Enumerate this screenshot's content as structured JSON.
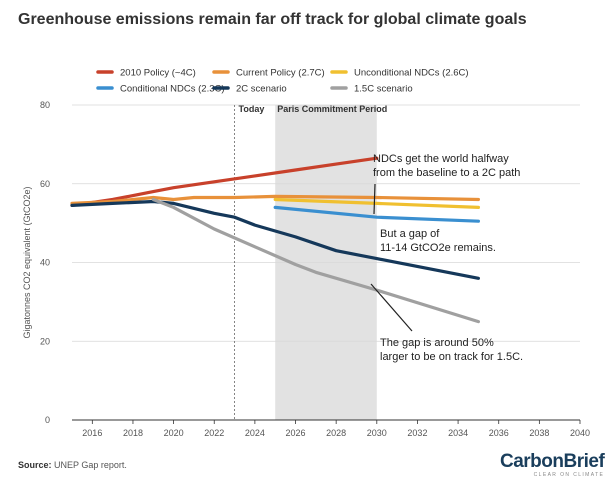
{
  "title": "Greenhouse emissions remain far off track for global climate goals",
  "source_label": "Source:",
  "source_text": "UNEP Gap report.",
  "logo": {
    "part1": "Carbon",
    "part2": "Brief",
    "tagline": "CLEAR ON CLIMATE"
  },
  "chart_data": {
    "type": "line",
    "title": "Greenhouse emissions remain far off track for global climate goals",
    "xlabel": "",
    "ylabel": "Gigatonnes CO2 equivalent (GtCO2e)",
    "xlim": [
      2015,
      2040
    ],
    "ylim": [
      0,
      80
    ],
    "x_ticks": [
      2016,
      2018,
      2020,
      2022,
      2024,
      2026,
      2028,
      2030,
      2032,
      2034,
      2036,
      2038,
      2040
    ],
    "y_ticks": [
      0,
      20,
      40,
      60,
      80
    ],
    "grid": "horizontal",
    "legend_position": "top",
    "today": {
      "x": 2023,
      "label": "Today"
    },
    "band": {
      "x0": 2025,
      "x1": 2030,
      "label": "Paris Commitment Period"
    },
    "series": [
      {
        "name": "2010 Policy (~4C)",
        "color": "#c8412b",
        "x": [
          2015,
          2017,
          2019,
          2020,
          2022,
          2024,
          2026,
          2028,
          2030
        ],
        "values": [
          54.5,
          56,
          58,
          59,
          60.5,
          62,
          63.5,
          65,
          66.5
        ]
      },
      {
        "name": "Current Policy (2.7C)",
        "color": "#e8913a",
        "x": [
          2015,
          2017,
          2019,
          2020,
          2021,
          2023,
          2025,
          2030,
          2035
        ],
        "values": [
          55,
          55.5,
          56.5,
          56,
          56.5,
          56.5,
          56.8,
          56.5,
          56
        ]
      },
      {
        "name": "Unconditional NDCs (2.6C)",
        "color": "#f0c030",
        "x": [
          2025,
          2030,
          2035
        ],
        "values": [
          56,
          55,
          54
        ]
      },
      {
        "name": "Conditional NDCs (2.3C)",
        "color": "#3a8fd0",
        "x": [
          2025,
          2030,
          2035
        ],
        "values": [
          54,
          51.5,
          50.5
        ]
      },
      {
        "name": "2C scenario",
        "color": "#15385a",
        "x": [
          2015,
          2017,
          2019,
          2020,
          2022,
          2023,
          2024,
          2026,
          2028,
          2030,
          2035
        ],
        "values": [
          54.5,
          55,
          55.5,
          55,
          52.5,
          51.5,
          49.5,
          46.5,
          43,
          41,
          36
        ]
      },
      {
        "name": "1.5C scenario",
        "color": "#a0a0a0",
        "x": [
          2019,
          2020,
          2022,
          2024,
          2026,
          2027,
          2030,
          2035
        ],
        "values": [
          56,
          54,
          48.5,
          44,
          39.5,
          37.5,
          33,
          25
        ]
      }
    ],
    "annotations": [
      {
        "lines": [
          "NDCs get the world halfway",
          "from the baseline to a 2C path"
        ]
      },
      {
        "lines": [
          "But a gap of",
          "11-14 GtCO2e remains."
        ]
      },
      {
        "lines": [
          "The gap is around 50%",
          "larger to be on track for 1.5C."
        ]
      }
    ]
  }
}
